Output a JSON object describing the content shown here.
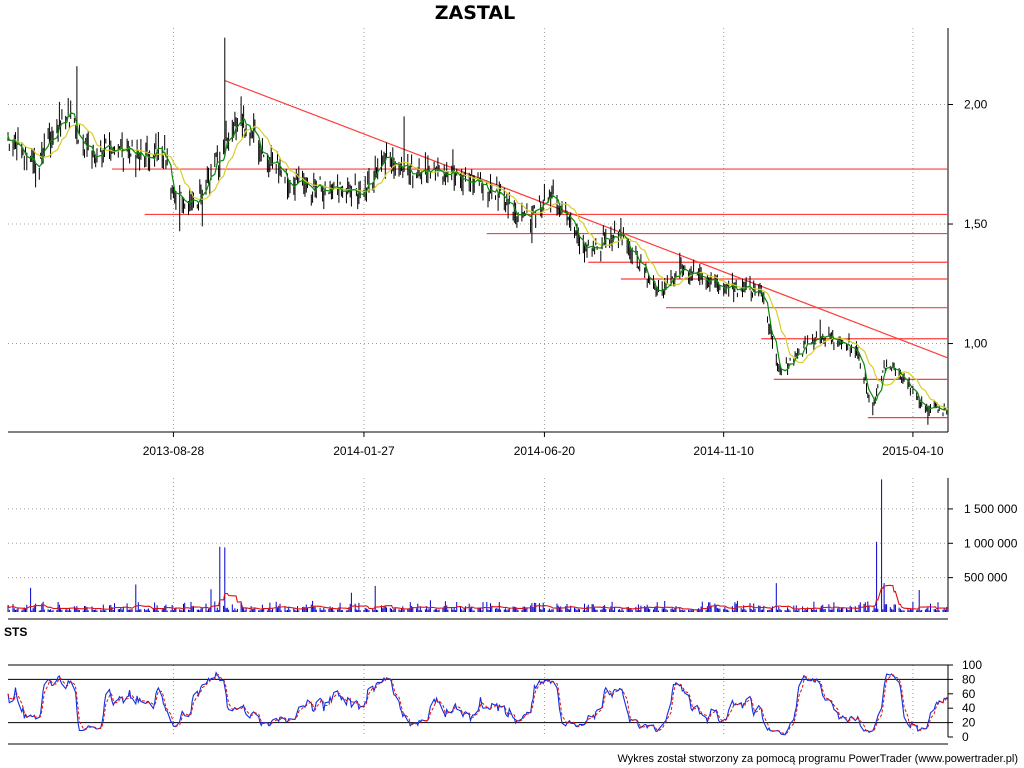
{
  "title": "ZASTAL",
  "footer": "Wykres został stworzony za pomocą programu PowerTrader (www.powertrader.pl)",
  "colors": {
    "candle": "#000000",
    "short_ma": "#0b8a0b",
    "long_ma": "#d6cf2a",
    "support_lines": "#ff3b3b",
    "volume_bars": "#0000cc",
    "volume_ma": "#e01010",
    "sts_k": "#1030e0",
    "sts_d": "#e01010",
    "grid": "#a0a0a0"
  },
  "chart_data": [
    {
      "id": "price",
      "type": "candlestick",
      "title": "ZASTAL",
      "x_range": [
        "2013-04-18",
        "2015-05-08"
      ],
      "x_ticks": [
        "2013-08-28",
        "2014-01-27",
        "2014-06-20",
        "2014-11-10",
        "2015-04-10"
      ],
      "y_range": [
        0.63,
        2.32
      ],
      "y_ticks": [
        2.0,
        1.5,
        1.0
      ],
      "y_tick_labels": [
        "2,00",
        "1,50",
        "1,00"
      ],
      "grid": true,
      "price_anchors": [
        [
          "2013-04-18",
          1.86
        ],
        [
          "2013-05-10",
          1.74
        ],
        [
          "2013-06-05",
          1.98
        ],
        [
          "2013-06-20",
          1.8
        ],
        [
          "2013-07-10",
          1.81
        ],
        [
          "2013-08-05",
          1.79
        ],
        [
          "2013-08-20",
          1.8
        ],
        [
          "2013-08-28",
          1.62
        ],
        [
          "2013-09-15",
          1.58
        ],
        [
          "2013-10-08",
          1.83
        ],
        [
          "2013-10-20",
          1.95
        ],
        [
          "2013-11-10",
          1.78
        ],
        [
          "2013-12-05",
          1.65
        ],
        [
          "2014-01-05",
          1.65
        ],
        [
          "2014-01-27",
          1.64
        ],
        [
          "2014-02-15",
          1.8
        ],
        [
          "2014-03-05",
          1.72
        ],
        [
          "2014-04-10",
          1.72
        ],
        [
          "2014-05-15",
          1.62
        ],
        [
          "2014-06-05",
          1.52
        ],
        [
          "2014-06-25",
          1.62
        ],
        [
          "2014-07-25",
          1.39
        ],
        [
          "2014-08-20",
          1.46
        ],
        [
          "2014-09-20",
          1.2
        ],
        [
          "2014-10-05",
          1.32
        ],
        [
          "2014-11-10",
          1.24
        ],
        [
          "2014-12-10",
          1.22
        ],
        [
          "2014-12-25",
          0.87
        ],
        [
          "2015-01-25",
          1.05
        ],
        [
          "2015-02-25",
          0.97
        ],
        [
          "2015-03-08",
          0.73
        ],
        [
          "2015-03-20",
          0.92
        ],
        [
          "2015-04-05",
          0.83
        ],
        [
          "2015-04-20",
          0.73
        ],
        [
          "2015-05-05",
          0.72
        ]
      ],
      "trend_line": {
        "from": [
          "2013-10-08",
          2.1
        ],
        "to": [
          "2015-05-08",
          0.94
        ]
      },
      "support_lines": [
        {
          "from": "2013-07-10",
          "to": "2015-05-08",
          "value": 1.73
        },
        {
          "from": "2013-08-05",
          "to": "2015-05-08",
          "value": 1.54
        },
        {
          "from": "2014-05-05",
          "to": "2015-05-08",
          "value": 1.46
        },
        {
          "from": "2014-07-25",
          "to": "2015-05-08",
          "value": 1.34
        },
        {
          "from": "2014-08-20",
          "to": "2015-05-08",
          "value": 1.27
        },
        {
          "from": "2014-09-25",
          "to": "2015-05-08",
          "value": 1.15
        },
        {
          "from": "2014-12-10",
          "to": "2015-05-08",
          "value": 1.02
        },
        {
          "from": "2014-12-20",
          "to": "2015-05-08",
          "value": 0.85
        },
        {
          "from": "2015-03-05",
          "to": "2015-05-08",
          "value": 0.69
        }
      ]
    },
    {
      "id": "volume",
      "type": "bar",
      "y_range": [
        0,
        1950000
      ],
      "y_ticks": [
        500000,
        1000000,
        1500000
      ],
      "y_tick_labels": [
        "500 000",
        "1 000 000",
        "1 500 000"
      ],
      "spikes": [
        [
          "2013-10-05",
          950000
        ],
        [
          "2013-10-08",
          940000
        ],
        [
          "2013-09-28",
          330000
        ],
        [
          "2013-07-28",
          400000
        ],
        [
          "2013-05-05",
          350000
        ],
        [
          "2014-02-05",
          380000
        ],
        [
          "2014-01-18",
          280000
        ],
        [
          "2014-12-22",
          420000
        ],
        [
          "2015-03-12",
          1020000
        ],
        [
          "2015-03-15",
          1930000
        ],
        [
          "2015-03-18",
          420000
        ],
        [
          "2015-04-15",
          320000
        ]
      ]
    },
    {
      "id": "sts",
      "type": "line",
      "label": "STS",
      "y_range": [
        0,
        100
      ],
      "y_ticks": [
        0,
        20,
        40,
        60,
        80,
        100
      ],
      "y_tick_labels": [
        "0",
        "20",
        "40",
        "60",
        "80",
        "100"
      ],
      "reference_lines": [
        20,
        80
      ],
      "series": [
        {
          "key": "k"
        },
        {
          "key": "d"
        }
      ]
    }
  ]
}
